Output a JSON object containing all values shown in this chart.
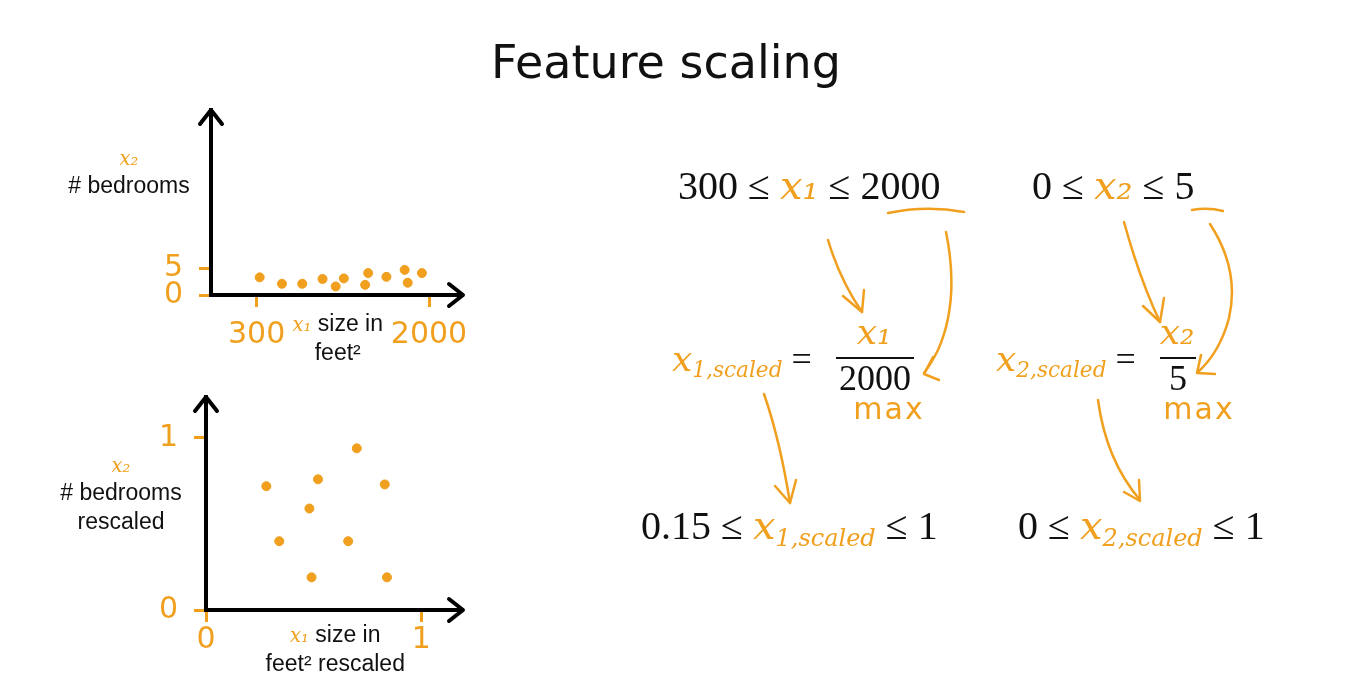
{
  "chart_data": [
    {
      "type": "scatter",
      "xlabel": "x₁ size in\nfeet²",
      "ylabel": "x₂\n# bedrooms",
      "x": [
        330,
        550,
        750,
        950,
        1080,
        1160,
        1400,
        1370,
        1580,
        1760,
        1790,
        1930
      ],
      "values": [
        3.3,
        2.1,
        2.1,
        3.0,
        1.6,
        3.1,
        4.1,
        1.9,
        3.4,
        4.7,
        2.3,
        4.1
      ],
      "color": "#f0a01e",
      "marker": "circle",
      "xlim": [
        -150,
        2350
      ],
      "ylim": [
        0,
        35
      ],
      "xticks": [
        300,
        2000
      ],
      "yticks": [
        0,
        5
      ]
    },
    {
      "type": "scatter",
      "xlabel": "x₁ size in\nfeet² rescaled",
      "ylabel": "x₂\n# bedrooms\nrescaled",
      "x": [
        0.28,
        0.52,
        0.7,
        0.83,
        0.48,
        0.34,
        0.66,
        0.49,
        0.84
      ],
      "values": [
        0.72,
        0.76,
        0.94,
        0.73,
        0.59,
        0.4,
        0.4,
        0.19,
        0.19
      ],
      "color": "#f0a01e",
      "marker": "circle",
      "xlim": [
        0,
        1.2
      ],
      "ylim": [
        0,
        1.25
      ],
      "xticks": [
        0,
        1
      ],
      "yticks": [
        0,
        1
      ]
    },
    {
      "type": "other",
      "title": "Feature scaling",
      "annotations": [
        "300 ≤ x₁ ≤ 2000",
        "0 ≤ x₂ ≤ 5",
        "x$_{1,scaled}$ =",
        "x₁",
        "2000",
        "max",
        "x$_{2,scaled}$ =",
        "x₂",
        "5",
        "max",
        "0.15 ≤ x$_{1,scaled}$ ≤ 1",
        "0 ≤ x$_{2,scaled}$ ≤ 1"
      ]
    }
  ]
}
